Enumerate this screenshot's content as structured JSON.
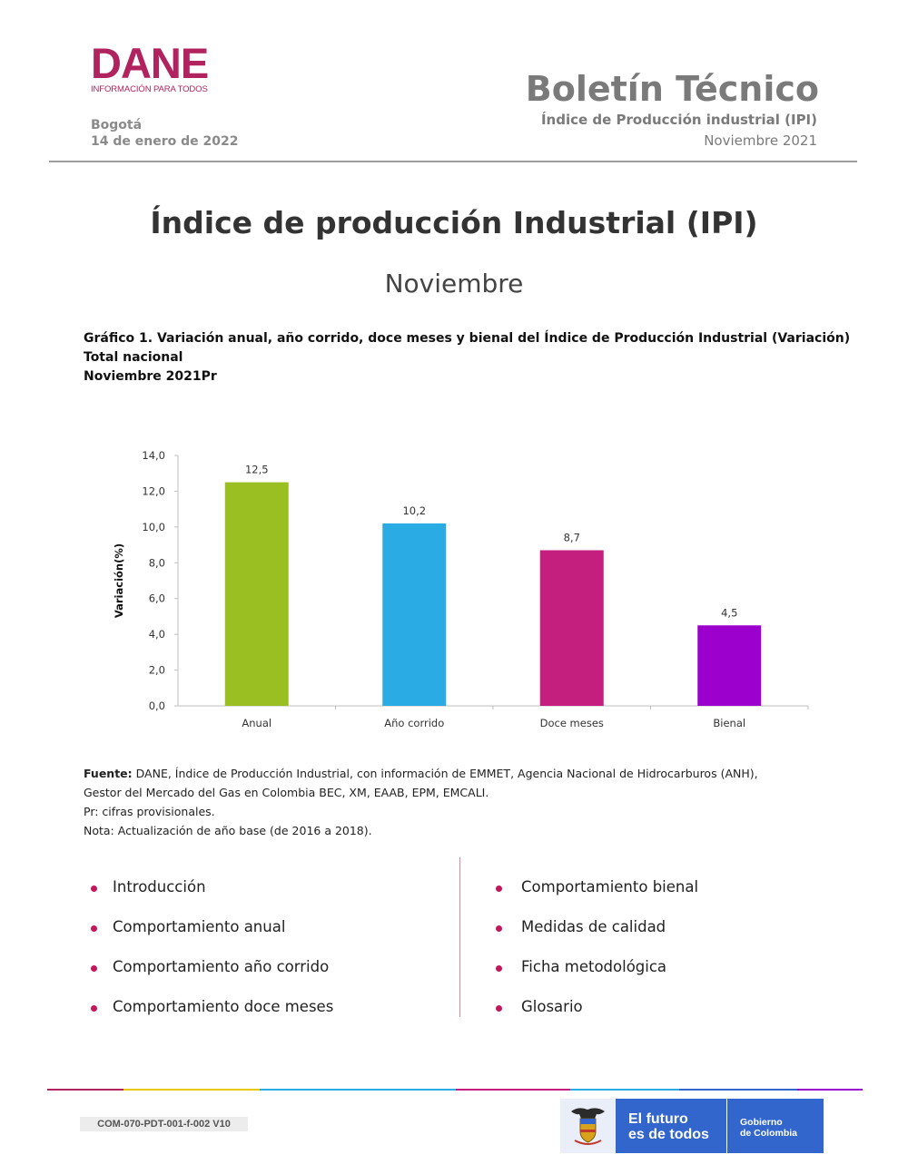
{
  "header": {
    "logo_text": "DANE",
    "logo_tagline": "INFORMACIÓN PARA TODOS",
    "city": "Bogotá",
    "date": "14 de enero de 2022",
    "bulletin_title": "Boletín Técnico",
    "bulletin_subtitle": "Índice de Producción industrial (IPI)",
    "bulletin_period": "Noviembre 2021"
  },
  "main": {
    "title": "Índice de producción Industrial (IPI)",
    "subtitle": "Noviembre"
  },
  "caption": {
    "line1": "Gráfico 1. Variación anual, año corrido, doce meses y bienal del Índice de Producción Industrial (Variación)",
    "line2": "Total nacional",
    "line3": "Noviembre 2021Pr"
  },
  "chart_data": {
    "type": "bar",
    "categories": [
      "Anual",
      "Año corrido",
      "Doce meses",
      "Bienal"
    ],
    "values": [
      12.5,
      10.2,
      8.7,
      4.5
    ],
    "data_labels": [
      "12,5",
      "10,2",
      "8,7",
      "4,5"
    ],
    "colors": [
      "#9abf22",
      "#2aabe4",
      "#c41f7f",
      "#9b00cc"
    ],
    "ylabel": "Variación(%)",
    "xlabel": "",
    "ylim": [
      0,
      14
    ],
    "yticks": [
      "0,0",
      "2,0",
      "4,0",
      "6,0",
      "8,0",
      "10,0",
      "12,0",
      "14,0"
    ],
    "grid": false,
    "legend": "none"
  },
  "source": {
    "label": "Fuente:",
    "line1": "DANE, Índice de Producción Industrial, con información de EMMET, Agencia Nacional de Hidrocarburos (ANH),",
    "line2": "Gestor del Mercado del Gas en Colombia BEC, XM, EAAB, EPM, EMCALI.",
    "line3": "Pr: cifras provisionales.",
    "line4": "Nota: Actualización de año base (de 2016 a 2018)."
  },
  "contents": {
    "left": [
      "Introducción",
      "Comportamiento anual",
      "Comportamiento año corrido",
      "Comportamiento doce meses"
    ],
    "right": [
      "Comportamiento bienal",
      "Medidas de calidad",
      "Ficha metodológica",
      "Glosario"
    ]
  },
  "footer": {
    "code": "COM-070-PDT-001-f-002 V10",
    "gov_slogan_1": "El futuro",
    "gov_slogan_2": "es de todos",
    "gov_name_1": "Gobierno",
    "gov_name_2": "de Colombia",
    "colors": [
      "#b0235e",
      "#e8c800",
      "#2aabe4",
      "#c41f7f",
      "#3366cc",
      "#9b00cc"
    ]
  }
}
